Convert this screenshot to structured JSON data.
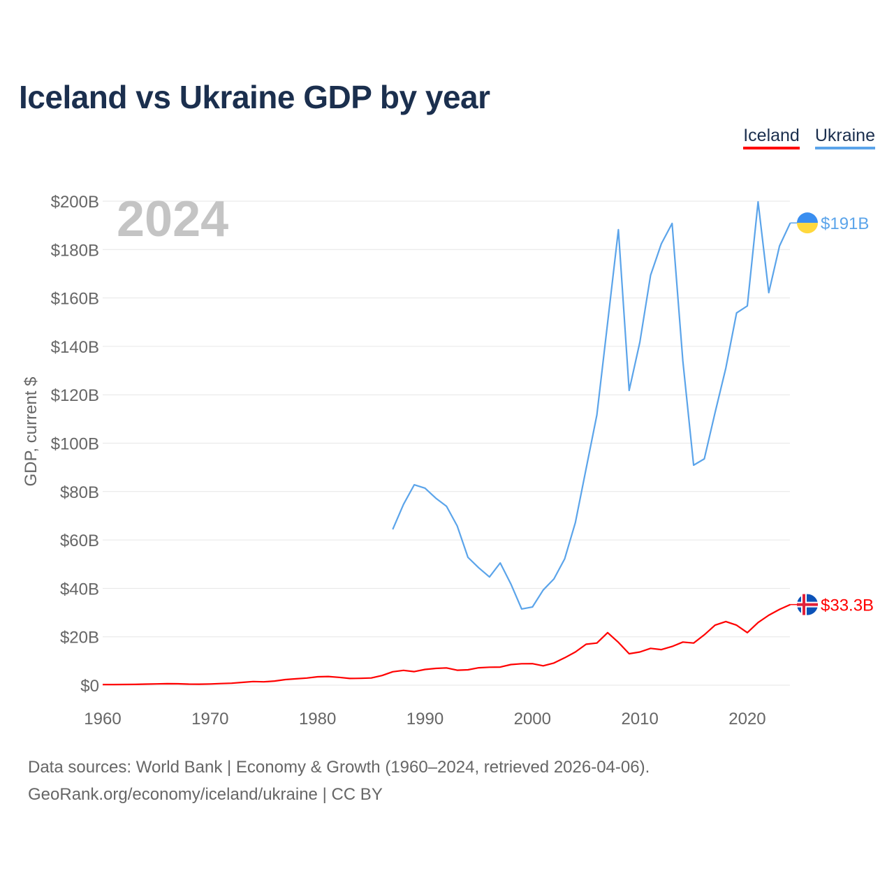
{
  "chart_data": {
    "type": "line",
    "title": "Iceland vs Ukraine GDP by year",
    "ylabel": "GDP, current $",
    "xlabel": "",
    "xlim": [
      1960,
      2024
    ],
    "ylim": [
      0,
      200
    ],
    "x_ticks": [
      "1960",
      "1970",
      "1980",
      "1990",
      "2000",
      "2010",
      "2020"
    ],
    "y_ticks": [
      "$0",
      "$20B",
      "$40B",
      "$60B",
      "$80B",
      "$100B",
      "$120B",
      "$140B",
      "$160B",
      "$180B",
      "$200B"
    ],
    "grid": true,
    "legend_position": "top-right",
    "year_label": "2024",
    "series": [
      {
        "name": "Iceland",
        "color": "#ff0000",
        "end_label": "$33.3B",
        "start_year": 1960,
        "values": [
          0.25,
          0.25,
          0.28,
          0.33,
          0.42,
          0.51,
          0.6,
          0.58,
          0.44,
          0.39,
          0.5,
          0.65,
          0.81,
          1.14,
          1.5,
          1.39,
          1.71,
          2.31,
          2.62,
          2.94,
          3.46,
          3.57,
          3.24,
          2.76,
          2.84,
          2.98,
          3.98,
          5.54,
          6.12,
          5.61,
          6.49,
          6.94,
          7.14,
          6.19,
          6.35,
          7.2,
          7.43,
          7.48,
          8.5,
          8.87,
          8.9,
          8.0,
          9.14,
          11.3,
          13.7,
          16.9,
          17.4,
          21.7,
          17.7,
          13.0,
          13.7,
          15.2,
          14.7,
          16.0,
          17.8,
          17.4,
          20.8,
          24.8,
          26.3,
          24.8,
          21.7,
          25.9,
          28.9,
          31.3,
          33.3
        ]
      },
      {
        "name": "Ukraine",
        "color": "#5ba4ea",
        "end_label": "$191B",
        "start_year": 1987,
        "values": [
          64.4,
          74.7,
          82.8,
          81.4,
          77.3,
          73.9,
          65.8,
          52.8,
          48.5,
          44.7,
          50.5,
          41.8,
          31.5,
          32.3,
          39.3,
          43.9,
          52.2,
          67.2,
          89.5,
          111.7,
          149.8,
          188.2,
          121.8,
          141.7,
          169.4,
          182.4,
          190.8,
          133.9,
          90.9,
          93.5,
          112.6,
          131.0,
          153.8,
          156.7,
          199.7,
          162.2,
          181.5,
          191.0
        ]
      }
    ]
  },
  "sources": {
    "line1": "Data sources: World Bank | Economy & Growth (1960–2024, retrieved 2026-04-06).",
    "line2": "GeoRank.org/economy/iceland/ukraine | CC BY"
  }
}
